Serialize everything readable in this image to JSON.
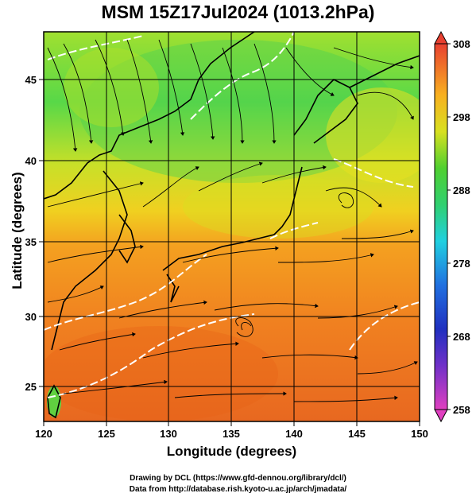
{
  "title": "MSM 15Z17Jul2024 (1013.2hPa)",
  "x_axis": {
    "label": "Longitude (degrees)",
    "range": [
      120,
      150
    ],
    "ticks": [
      "120",
      "125",
      "130",
      "135",
      "140",
      "145",
      "150"
    ]
  },
  "y_axis": {
    "label": "Latitude  (degrees)",
    "range": [
      22.5,
      47.5
    ],
    "ticks": [
      "25",
      "30",
      "35",
      "40",
      "45"
    ]
  },
  "colorbar": {
    "range": [
      258,
      308
    ],
    "ticks": [
      "258",
      "268",
      "278",
      "288",
      "298",
      "308"
    ],
    "colors": [
      "#e040c0",
      "#4a2cc8",
      "#2060e0",
      "#20c8e0",
      "#30c860",
      "#a8e020",
      "#f0e020",
      "#f8a020",
      "#e85020"
    ]
  },
  "credits": {
    "line1": "Drawing by DCL (https://www.gfd-dennou.org/library/dcl/)",
    "line2": "Data from http://database.rish.kyoto-u.ac.jp/arch/jmadata/"
  },
  "map": {
    "field": "temperature (K)",
    "overlay": "wind streamlines",
    "grid_spacing_deg": 5
  }
}
